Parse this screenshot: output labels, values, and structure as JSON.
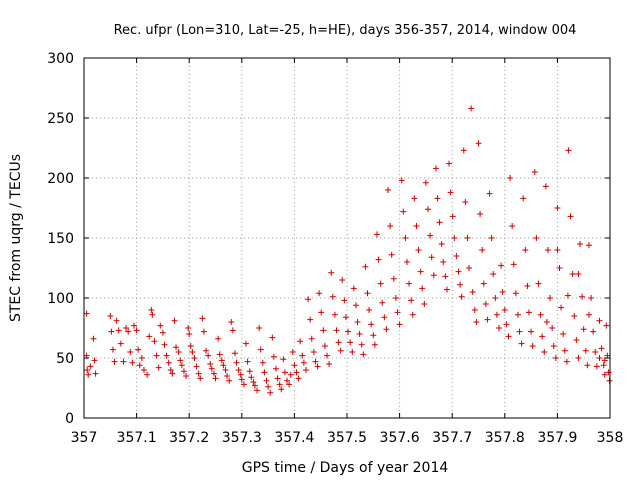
{
  "chart_data": {
    "type": "scatter",
    "title": "Rec. ufpr (Lon=310, Lat=-25, h=HE), days 356-357, 2014, window 004",
    "xlabel": "GPS time / Days of year 2014",
    "ylabel": "STEC from uqrg / TECUs",
    "xlim": [
      357,
      358
    ],
    "ylim": [
      0,
      300
    ],
    "xticks": [
      "357",
      "357.1",
      "357.2",
      "357.3",
      "357.4",
      "357.5",
      "357.6",
      "357.7",
      "357.8",
      "357.9",
      "358"
    ],
    "yticks": [
      "0",
      "50",
      "100",
      "150",
      "200",
      "250",
      "300"
    ],
    "grid": true,
    "marker": "plus",
    "color": "#cc0000",
    "series": [
      {
        "points": [
          [
            357.005,
            87
          ],
          [
            357.005,
            52
          ],
          [
            357.006,
            40
          ],
          [
            357.008,
            36
          ],
          [
            357.012,
            43
          ],
          [
            357.018,
            66
          ],
          [
            357.02,
            48
          ],
          [
            357.022,
            37
          ],
          [
            357.05,
            85
          ],
          [
            357.052,
            72
          ],
          [
            357.055,
            57
          ],
          [
            357.058,
            47
          ],
          [
            357.062,
            81
          ],
          [
            357.066,
            73
          ],
          [
            357.07,
            62
          ],
          [
            357.075,
            47
          ],
          [
            357.08,
            75
          ],
          [
            357.084,
            72
          ],
          [
            357.088,
            55
          ],
          [
            357.092,
            46
          ],
          [
            357.095,
            77
          ],
          [
            357.1,
            73
          ],
          [
            357.103,
            57
          ],
          [
            357.106,
            44
          ],
          [
            357.11,
            50
          ],
          [
            357.114,
            40
          ],
          [
            357.12,
            36
          ],
          [
            357.124,
            68
          ],
          [
            357.128,
            90
          ],
          [
            357.13,
            86
          ],
          [
            357.134,
            64
          ],
          [
            357.138,
            52
          ],
          [
            357.142,
            42
          ],
          [
            357.145,
            77
          ],
          [
            357.15,
            71
          ],
          [
            357.153,
            61
          ],
          [
            357.157,
            52
          ],
          [
            357.161,
            46
          ],
          [
            357.165,
            40
          ],
          [
            357.168,
            37
          ],
          [
            357.172,
            81
          ],
          [
            357.175,
            59
          ],
          [
            357.18,
            55
          ],
          [
            357.183,
            48
          ],
          [
            357.186,
            44
          ],
          [
            357.19,
            39
          ],
          [
            357.194,
            35
          ],
          [
            357.198,
            75
          ],
          [
            357.2,
            70
          ],
          [
            357.203,
            60
          ],
          [
            357.206,
            55
          ],
          [
            357.21,
            50
          ],
          [
            357.214,
            43
          ],
          [
            357.218,
            37
          ],
          [
            357.221,
            33
          ],
          [
            357.225,
            83
          ],
          [
            357.228,
            72
          ],
          [
            357.232,
            56
          ],
          [
            357.236,
            52
          ],
          [
            357.24,
            45
          ],
          [
            357.243,
            41
          ],
          [
            357.247,
            37
          ],
          [
            357.25,
            33
          ],
          [
            357.255,
            66
          ],
          [
            357.258,
            53
          ],
          [
            357.262,
            48
          ],
          [
            357.265,
            44
          ],
          [
            357.269,
            40
          ],
          [
            357.272,
            35
          ],
          [
            357.276,
            31
          ],
          [
            357.28,
            80
          ],
          [
            357.283,
            73
          ],
          [
            357.287,
            54
          ],
          [
            357.29,
            46
          ],
          [
            357.294,
            40
          ],
          [
            357.298,
            36
          ],
          [
            357.3,
            32
          ],
          [
            357.304,
            28
          ],
          [
            357.308,
            62
          ],
          [
            357.311,
            47
          ],
          [
            357.315,
            39
          ],
          [
            357.318,
            34
          ],
          [
            357.322,
            30
          ],
          [
            357.325,
            27
          ],
          [
            357.329,
            23
          ],
          [
            357.333,
            75
          ],
          [
            357.336,
            57
          ],
          [
            357.34,
            46
          ],
          [
            357.343,
            38
          ],
          [
            357.347,
            31
          ],
          [
            357.35,
            26
          ],
          [
            357.354,
            21
          ],
          [
            357.358,
            67
          ],
          [
            357.361,
            51
          ],
          [
            357.365,
            41
          ],
          [
            357.368,
            33
          ],
          [
            357.372,
            28
          ],
          [
            357.375,
            24
          ],
          [
            357.379,
            49
          ],
          [
            357.382,
            38
          ],
          [
            357.386,
            31
          ],
          [
            357.39,
            28
          ],
          [
            357.393,
            36
          ],
          [
            357.397,
            55
          ],
          [
            357.4,
            44
          ],
          [
            357.404,
            38
          ],
          [
            357.408,
            33
          ],
          [
            357.411,
            64
          ],
          [
            357.415,
            52
          ],
          [
            357.418,
            46
          ],
          [
            357.422,
            40
          ],
          [
            357.426,
            99
          ],
          [
            357.43,
            82
          ],
          [
            357.433,
            66
          ],
          [
            357.437,
            55
          ],
          [
            357.44,
            47
          ],
          [
            357.444,
            43
          ],
          [
            357.447,
            104
          ],
          [
            357.451,
            88
          ],
          [
            357.455,
            73
          ],
          [
            357.458,
            60
          ],
          [
            357.462,
            52
          ],
          [
            357.466,
            45
          ],
          [
            357.47,
            121
          ],
          [
            357.473,
            101
          ],
          [
            357.477,
            86
          ],
          [
            357.48,
            73
          ],
          [
            357.484,
            63
          ],
          [
            357.488,
            56
          ],
          [
            357.491,
            115
          ],
          [
            357.495,
            98
          ],
          [
            357.498,
            84
          ],
          [
            357.502,
            72
          ],
          [
            357.506,
            63
          ],
          [
            357.51,
            55
          ],
          [
            357.513,
            108
          ],
          [
            357.517,
            94
          ],
          [
            357.52,
            80
          ],
          [
            357.524,
            70
          ],
          [
            357.528,
            61
          ],
          [
            357.531,
            53
          ],
          [
            357.535,
            126
          ],
          [
            357.539,
            104
          ],
          [
            357.542,
            90
          ],
          [
            357.546,
            78
          ],
          [
            357.55,
            69
          ],
          [
            357.553,
            61
          ],
          [
            357.557,
            153
          ],
          [
            357.56,
            132
          ],
          [
            357.564,
            112
          ],
          [
            357.567,
            96
          ],
          [
            357.571,
            84
          ],
          [
            357.575,
            74
          ],
          [
            357.578,
            190
          ],
          [
            357.582,
            160
          ],
          [
            357.585,
            136
          ],
          [
            357.589,
            116
          ],
          [
            357.593,
            100
          ],
          [
            357.596,
            88
          ],
          [
            357.6,
            78
          ],
          [
            357.604,
            198
          ],
          [
            357.607,
            172
          ],
          [
            357.611,
            150
          ],
          [
            357.614,
            130
          ],
          [
            357.618,
            112
          ],
          [
            357.622,
            98
          ],
          [
            357.625,
            86
          ],
          [
            357.628,
            183
          ],
          [
            357.632,
            160
          ],
          [
            357.636,
            140
          ],
          [
            357.64,
            122
          ],
          [
            357.643,
            108
          ],
          [
            357.647,
            95
          ],
          [
            357.65,
            196
          ],
          [
            357.654,
            174
          ],
          [
            357.658,
            152
          ],
          [
            357.661,
            134
          ],
          [
            357.665,
            119
          ],
          [
            357.669,
            208
          ],
          [
            357.672,
            183
          ],
          [
            357.676,
            163
          ],
          [
            357.68,
            145
          ],
          [
            357.683,
            130
          ],
          [
            357.687,
            118
          ],
          [
            357.69,
            107
          ],
          [
            357.694,
            212
          ],
          [
            357.697,
            188
          ],
          [
            357.701,
            168
          ],
          [
            357.704,
            150
          ],
          [
            357.708,
            135
          ],
          [
            357.712,
            122
          ],
          [
            357.715,
            111
          ],
          [
            357.718,
            101
          ],
          [
            357.722,
            223
          ],
          [
            357.725,
            180
          ],
          [
            357.729,
            150
          ],
          [
            357.732,
            125
          ],
          [
            357.736,
            258
          ],
          [
            357.739,
            105
          ],
          [
            357.743,
            90
          ],
          [
            357.746,
            80
          ],
          [
            357.75,
            229
          ],
          [
            357.753,
            170
          ],
          [
            357.757,
            140
          ],
          [
            357.76,
            112
          ],
          [
            357.764,
            95
          ],
          [
            357.767,
            82
          ],
          [
            357.771,
            187
          ],
          [
            357.775,
            150
          ],
          [
            357.778,
            120
          ],
          [
            357.782,
            100
          ],
          [
            357.785,
            86
          ],
          [
            357.789,
            75
          ],
          [
            357.793,
            127
          ],
          [
            357.796,
            105
          ],
          [
            357.8,
            90
          ],
          [
            357.803,
            78
          ],
          [
            357.807,
            68
          ],
          [
            357.81,
            200
          ],
          [
            357.814,
            160
          ],
          [
            357.817,
            128
          ],
          [
            357.821,
            104
          ],
          [
            357.825,
            86
          ],
          [
            357.828,
            72
          ],
          [
            357.832,
            62
          ],
          [
            357.835,
            183
          ],
          [
            357.839,
            140
          ],
          [
            357.843,
            110
          ],
          [
            357.846,
            88
          ],
          [
            357.85,
            72
          ],
          [
            357.853,
            60
          ],
          [
            357.857,
            205
          ],
          [
            357.86,
            150
          ],
          [
            357.864,
            112
          ],
          [
            357.868,
            86
          ],
          [
            357.871,
            68
          ],
          [
            357.875,
            55
          ],
          [
            357.878,
            193
          ],
          [
            357.882,
            140
          ],
          [
            357.886,
            100
          ],
          [
            357.89,
            75
          ],
          [
            357.893,
            60
          ],
          [
            357.897,
            50
          ],
          [
            357.9,
            175
          ],
          [
            357.904,
            125
          ],
          [
            357.907,
            92
          ],
          [
            357.911,
            70
          ],
          [
            357.914,
            56
          ],
          [
            357.918,
            47
          ],
          [
            357.921,
            223
          ],
          [
            357.925,
            168
          ],
          [
            357.929,
            120
          ],
          [
            357.932,
            85
          ],
          [
            357.936,
            65
          ],
          [
            357.94,
            50
          ],
          [
            357.943,
            145
          ],
          [
            357.947,
            101
          ],
          [
            357.95,
            74
          ],
          [
            357.954,
            56
          ],
          [
            357.957,
            44
          ],
          [
            357.96,
            144
          ],
          [
            357.964,
            100
          ],
          [
            357.968,
            72
          ],
          [
            357.972,
            55
          ],
          [
            357.975,
            43
          ],
          [
            357.98,
            81
          ],
          [
            357.984,
            58
          ],
          [
            357.988,
            44
          ],
          [
            357.99,
            36
          ],
          [
            357.993,
            77
          ],
          [
            357.995,
            52
          ],
          [
            357.997,
            38
          ],
          [
            357.999,
            31
          ],
          [
            357.98,
            50
          ],
          [
            357.99,
            48
          ],
          [
            357.96,
            86
          ],
          [
            357.94,
            120
          ],
          [
            357.92,
            102
          ],
          [
            357.9,
            140
          ],
          [
            357.88,
            80
          ]
        ]
      }
    ]
  }
}
